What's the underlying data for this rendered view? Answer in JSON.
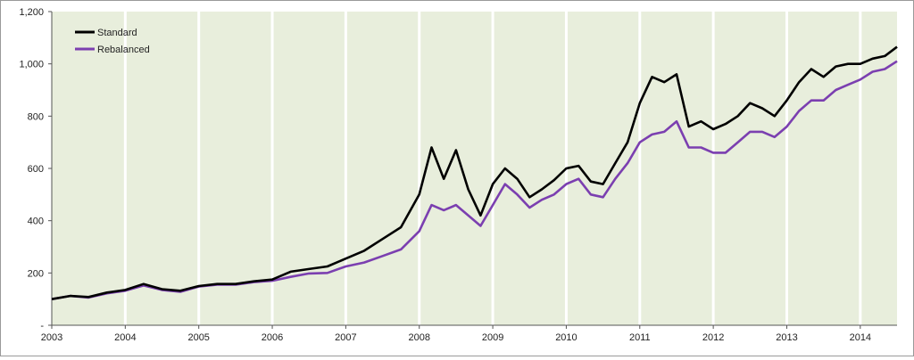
{
  "chart_data": {
    "type": "line",
    "title": "",
    "xlabel": "",
    "ylabel": "",
    "ylim": [
      0,
      1200
    ],
    "xlim": [
      "2003-01",
      "2014-07"
    ],
    "y_ticks": [
      {
        "value": 0,
        "label": "-"
      },
      {
        "value": 200,
        "label": "200"
      },
      {
        "value": 400,
        "label": "400"
      },
      {
        "value": 600,
        "label": "600"
      },
      {
        "value": 800,
        "label": "800"
      },
      {
        "value": 1000,
        "label": "1,000"
      },
      {
        "value": 1200,
        "label": "1,200"
      }
    ],
    "x_ticks": [
      "2003",
      "2004",
      "2005",
      "2006",
      "2007",
      "2008",
      "2009",
      "2010",
      "2011",
      "2012",
      "2013",
      "2014"
    ],
    "grid": "vertical year lines",
    "legend_position": "top-left",
    "plot_background": "#e8eedc",
    "series": [
      {
        "name": "Standard",
        "color": "#000000",
        "points": [
          [
            "2003-01",
            100
          ],
          [
            "2003-04",
            112
          ],
          [
            "2003-07",
            108
          ],
          [
            "2003-10",
            125
          ],
          [
            "2004-01",
            135
          ],
          [
            "2004-04",
            158
          ],
          [
            "2004-07",
            138
          ],
          [
            "2004-10",
            132
          ],
          [
            "2005-01",
            150
          ],
          [
            "2005-04",
            158
          ],
          [
            "2005-07",
            158
          ],
          [
            "2005-10",
            168
          ],
          [
            "2006-01",
            175
          ],
          [
            "2006-04",
            205
          ],
          [
            "2006-07",
            215
          ],
          [
            "2006-10",
            225
          ],
          [
            "2007-01",
            255
          ],
          [
            "2007-04",
            285
          ],
          [
            "2007-07",
            330
          ],
          [
            "2007-10",
            375
          ],
          [
            "2008-01",
            500
          ],
          [
            "2008-03",
            680
          ],
          [
            "2008-05",
            560
          ],
          [
            "2008-07",
            670
          ],
          [
            "2008-09",
            520
          ],
          [
            "2008-11",
            420
          ],
          [
            "2009-01",
            540
          ],
          [
            "2009-03",
            600
          ],
          [
            "2009-05",
            560
          ],
          [
            "2009-07",
            490
          ],
          [
            "2009-09",
            520
          ],
          [
            "2009-11",
            555
          ],
          [
            "2010-01",
            600
          ],
          [
            "2010-03",
            610
          ],
          [
            "2010-05",
            550
          ],
          [
            "2010-07",
            540
          ],
          [
            "2010-09",
            620
          ],
          [
            "2010-11",
            700
          ],
          [
            "2011-01",
            850
          ],
          [
            "2011-03",
            950
          ],
          [
            "2011-05",
            930
          ],
          [
            "2011-07",
            960
          ],
          [
            "2011-09",
            760
          ],
          [
            "2011-11",
            780
          ],
          [
            "2012-01",
            750
          ],
          [
            "2012-03",
            770
          ],
          [
            "2012-05",
            800
          ],
          [
            "2012-07",
            850
          ],
          [
            "2012-09",
            830
          ],
          [
            "2012-11",
            800
          ],
          [
            "2013-01",
            860
          ],
          [
            "2013-03",
            930
          ],
          [
            "2013-05",
            980
          ],
          [
            "2013-07",
            950
          ],
          [
            "2013-09",
            990
          ],
          [
            "2013-11",
            1000
          ],
          [
            "2014-01",
            1000
          ],
          [
            "2014-03",
            1020
          ],
          [
            "2014-05",
            1030
          ],
          [
            "2014-07",
            1065
          ]
        ]
      },
      {
        "name": "Rebalanced",
        "color": "#7b3fb0",
        "points": [
          [
            "2003-01",
            100
          ],
          [
            "2003-04",
            112
          ],
          [
            "2003-07",
            106
          ],
          [
            "2003-10",
            122
          ],
          [
            "2004-01",
            132
          ],
          [
            "2004-04",
            152
          ],
          [
            "2004-07",
            135
          ],
          [
            "2004-10",
            128
          ],
          [
            "2005-01",
            148
          ],
          [
            "2005-04",
            155
          ],
          [
            "2005-07",
            155
          ],
          [
            "2005-10",
            165
          ],
          [
            "2006-01",
            170
          ],
          [
            "2006-04",
            185
          ],
          [
            "2006-07",
            198
          ],
          [
            "2006-10",
            200
          ],
          [
            "2007-01",
            225
          ],
          [
            "2007-04",
            240
          ],
          [
            "2007-07",
            265
          ],
          [
            "2007-10",
            290
          ],
          [
            "2008-01",
            360
          ],
          [
            "2008-03",
            460
          ],
          [
            "2008-05",
            440
          ],
          [
            "2008-07",
            460
          ],
          [
            "2008-09",
            420
          ],
          [
            "2008-11",
            380
          ],
          [
            "2009-01",
            460
          ],
          [
            "2009-03",
            540
          ],
          [
            "2009-05",
            500
          ],
          [
            "2009-07",
            450
          ],
          [
            "2009-09",
            480
          ],
          [
            "2009-11",
            500
          ],
          [
            "2010-01",
            540
          ],
          [
            "2010-03",
            560
          ],
          [
            "2010-05",
            500
          ],
          [
            "2010-07",
            490
          ],
          [
            "2010-09",
            560
          ],
          [
            "2010-11",
            620
          ],
          [
            "2011-01",
            700
          ],
          [
            "2011-03",
            730
          ],
          [
            "2011-05",
            740
          ],
          [
            "2011-07",
            780
          ],
          [
            "2011-09",
            680
          ],
          [
            "2011-11",
            680
          ],
          [
            "2012-01",
            660
          ],
          [
            "2012-03",
            660
          ],
          [
            "2012-05",
            700
          ],
          [
            "2012-07",
            740
          ],
          [
            "2012-09",
            740
          ],
          [
            "2012-11",
            720
          ],
          [
            "2013-01",
            760
          ],
          [
            "2013-03",
            820
          ],
          [
            "2013-05",
            860
          ],
          [
            "2013-07",
            860
          ],
          [
            "2013-09",
            900
          ],
          [
            "2013-11",
            920
          ],
          [
            "2014-01",
            940
          ],
          [
            "2014-03",
            970
          ],
          [
            "2014-05",
            980
          ],
          [
            "2014-07",
            1010
          ]
        ]
      }
    ]
  }
}
